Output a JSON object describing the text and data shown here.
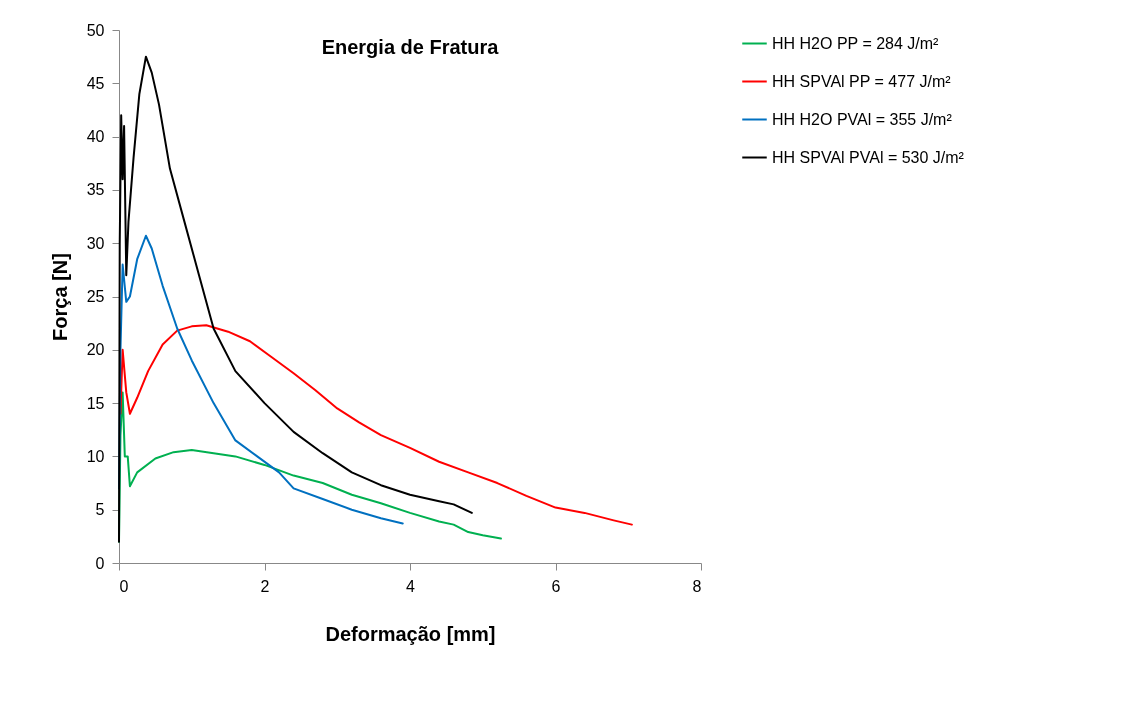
{
  "chart_data": {
    "type": "line",
    "title": "Energia de Fratura",
    "xlabel": "Deformação [mm]",
    "ylabel": "Força [N]",
    "xlim": [
      0,
      8
    ],
    "xticks": [
      0,
      2,
      4,
      6,
      8
    ],
    "ylim": [
      0,
      50
    ],
    "yticks": [
      0,
      5,
      10,
      15,
      20,
      25,
      30,
      35,
      40,
      45,
      50
    ],
    "grid": false,
    "legend": "right",
    "marker": "none",
    "line_style": "solid",
    "series": [
      {
        "name": "HH H2O PP = 284 J/m²",
        "color": "#00b050",
        "x": [
          0,
          0.02,
          0.05,
          0.08,
          0.12,
          0.15,
          0.25,
          0.5,
          0.75,
          1.0,
          1.3,
          1.6,
          2.0,
          2.4,
          2.8,
          3.2,
          3.6,
          4.0,
          4.4,
          4.6,
          4.8,
          5.0,
          5.25
        ],
        "values": [
          2,
          12,
          16,
          10,
          10,
          7.2,
          8.5,
          9.8,
          10.4,
          10.6,
          10.3,
          10,
          9.2,
          8.2,
          7.5,
          6.4,
          5.6,
          4.7,
          3.9,
          3.6,
          2.9,
          2.6,
          2.3
        ]
      },
      {
        "name": "HH SPVAl PP = 477 J/m²",
        "color": "#ff0000",
        "x": [
          0.02,
          0.05,
          0.1,
          0.15,
          0.25,
          0.4,
          0.6,
          0.8,
          1.0,
          1.2,
          1.5,
          1.8,
          2.1,
          2.4,
          2.7,
          3.0,
          3.3,
          3.6,
          4.0,
          4.4,
          4.8,
          5.2,
          5.6,
          6.0,
          6.4,
          6.8,
          7.05
        ],
        "values": [
          14,
          20,
          16,
          14,
          15.5,
          18,
          20.5,
          21.8,
          22.2,
          22.3,
          21.7,
          20.8,
          19.3,
          17.8,
          16.2,
          14.5,
          13.2,
          12.0,
          10.8,
          9.5,
          8.5,
          7.5,
          6.3,
          5.2,
          4.7,
          4.0,
          3.6
        ]
      },
      {
        "name": "HH H2O PVAl = 355 J/m²",
        "color": "#0070c0",
        "x": [
          0,
          0.02,
          0.05,
          0.1,
          0.15,
          0.25,
          0.37,
          0.45,
          0.6,
          0.8,
          1.0,
          1.3,
          1.6,
          1.9,
          2.2,
          2.4,
          2.8,
          3.2,
          3.6,
          3.9
        ],
        "values": [
          7,
          20,
          28,
          24.5,
          25,
          28.5,
          30.7,
          29.5,
          26,
          22,
          19,
          15,
          11.5,
          10,
          8.5,
          7,
          6,
          5,
          4.2,
          3.7
        ]
      },
      {
        "name": "HH SPVAl PVAl = 530 J/m²",
        "color": "#000000",
        "x": [
          0,
          0.01,
          0.03,
          0.05,
          0.07,
          0.1,
          0.13,
          0.2,
          0.28,
          0.37,
          0.45,
          0.55,
          0.7,
          0.9,
          1.1,
          1.3,
          1.6,
          2.0,
          2.4,
          2.8,
          3.2,
          3.6,
          4.0,
          4.4,
          4.6,
          4.85
        ],
        "values": [
          2,
          30,
          42,
          36,
          41,
          27,
          32,
          38,
          44,
          47.5,
          46,
          43,
          37,
          32,
          27,
          22,
          18,
          15,
          12.3,
          10.3,
          8.5,
          7.3,
          6.4,
          5.8,
          5.5,
          4.7
        ]
      }
    ]
  }
}
